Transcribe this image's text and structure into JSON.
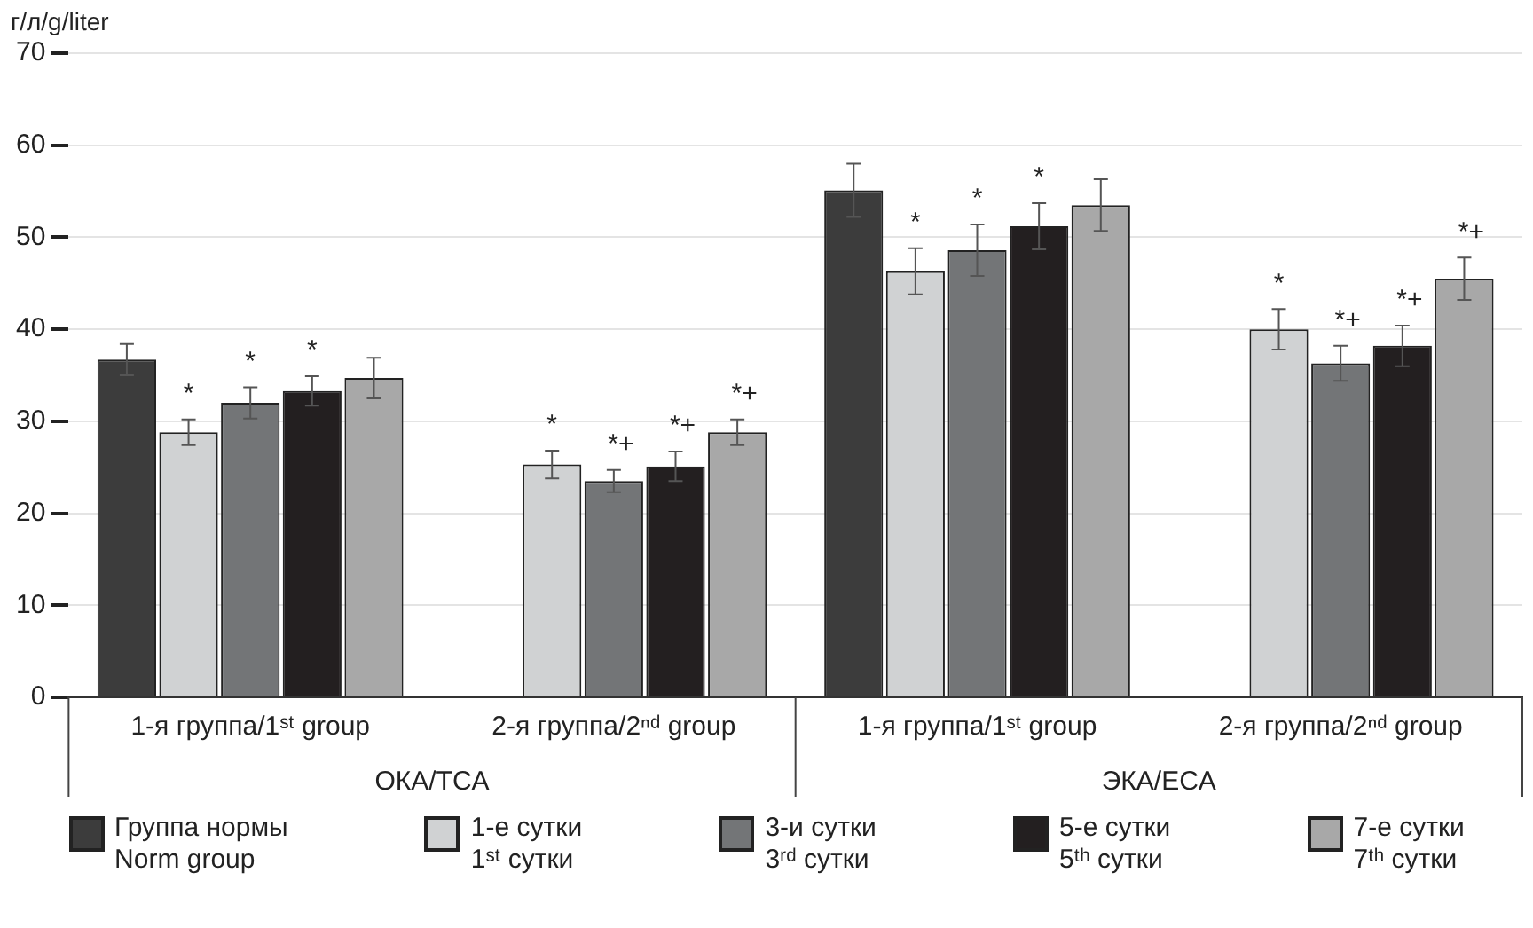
{
  "chart_data": {
    "type": "bar",
    "ylabel": "г/л/g/liter",
    "categories": [
      "1-я группа/1ˢᵗ group",
      "2-я группа/2ⁿᵈ group",
      "1-я группа/1ˢᵗ group",
      "2-я группа/2ⁿᵈ group"
    ],
    "series": [
      {
        "name": "Группа нормы\nNorm group",
        "color": "#3c3c3c",
        "values": [
          36.7,
          null,
          55.1,
          null
        ],
        "errors": [
          1.7,
          null,
          2.9,
          null
        ]
      },
      {
        "name": "1-е сутки\n1ˢᵗ сутки",
        "color": "#d0d2d3",
        "values": [
          28.8,
          25.3,
          46.3,
          40.0
        ],
        "errors": [
          1.4,
          1.5,
          2.5,
          2.2
        ],
        "value_labels": [
          "*",
          "*",
          "*",
          "*"
        ]
      },
      {
        "name": "3-и сутки\n3ʳᵈ сутки",
        "color": "#737577",
        "values": [
          32.0,
          23.5,
          48.6,
          36.3
        ],
        "errors": [
          1.7,
          1.2,
          2.8,
          1.9
        ],
        "value_labels": [
          "*",
          "*+",
          "*",
          "*+"
        ]
      },
      {
        "name": "5-е сутки\n5ᵗʰ сутки",
        "color": "#231f20",
        "values": [
          33.3,
          25.1,
          51.2,
          38.2
        ],
        "errors": [
          1.6,
          1.6,
          2.5,
          2.2
        ],
        "value_labels": [
          "*",
          "*+",
          "*",
          "*+"
        ]
      },
      {
        "name": "7-е сутки\n7ᵗʰ сутки",
        "color": "#a8a8a8",
        "values": [
          34.7,
          28.8,
          53.5,
          45.5
        ],
        "errors": [
          2.2,
          1.4,
          2.8,
          2.3
        ],
        "value_labels": [
          null,
          "*+",
          null,
          "*+"
        ]
      }
    ],
    "ylim": [
      0,
      70
    ],
    "yticks": [
      0,
      10,
      20,
      30,
      40,
      50,
      60,
      70
    ],
    "grid": "y",
    "legend": "bottom",
    "annotations": [
      "ОКА/TCA",
      "ЭКА/ECA"
    ]
  }
}
